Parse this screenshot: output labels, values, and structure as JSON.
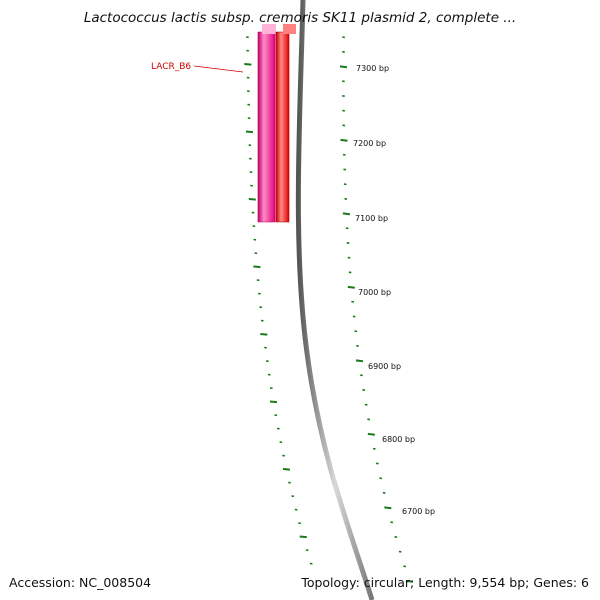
{
  "title": {
    "prefix": "Lactococcus lactis subsp. ",
    "suffix": "cremoris SK11 plasmid 2, complete ..."
  },
  "accession": {
    "label": "Accession:",
    "value": "NC_008504",
    "text": "Accession: NC_008504"
  },
  "summary": {
    "text": "Topology: circular; Length: 9,554 bp; Genes: 6",
    "topology": "circular",
    "length_bp": 9554,
    "gene_count": 6
  },
  "ruler": {
    "unit": "bp",
    "labels": [
      "7300 bp",
      "7200 bp",
      "7100 bp",
      "7000 bp",
      "6900 bp",
      "6800 bp",
      "6700 bp"
    ],
    "major_positions": [
      7300,
      7200,
      7100,
      7000,
      6900,
      6800,
      6700
    ],
    "tick_color": "#1a7a1a"
  },
  "genes": [
    {
      "label": "LACR_B6",
      "color": "#e6007e",
      "highlight_color": "#ff99cc",
      "label_color": "#d40000"
    },
    {
      "label": "",
      "color": "#ff0000",
      "highlight_color": "#ff9999"
    }
  ],
  "backbone": {
    "color": "#666666"
  }
}
